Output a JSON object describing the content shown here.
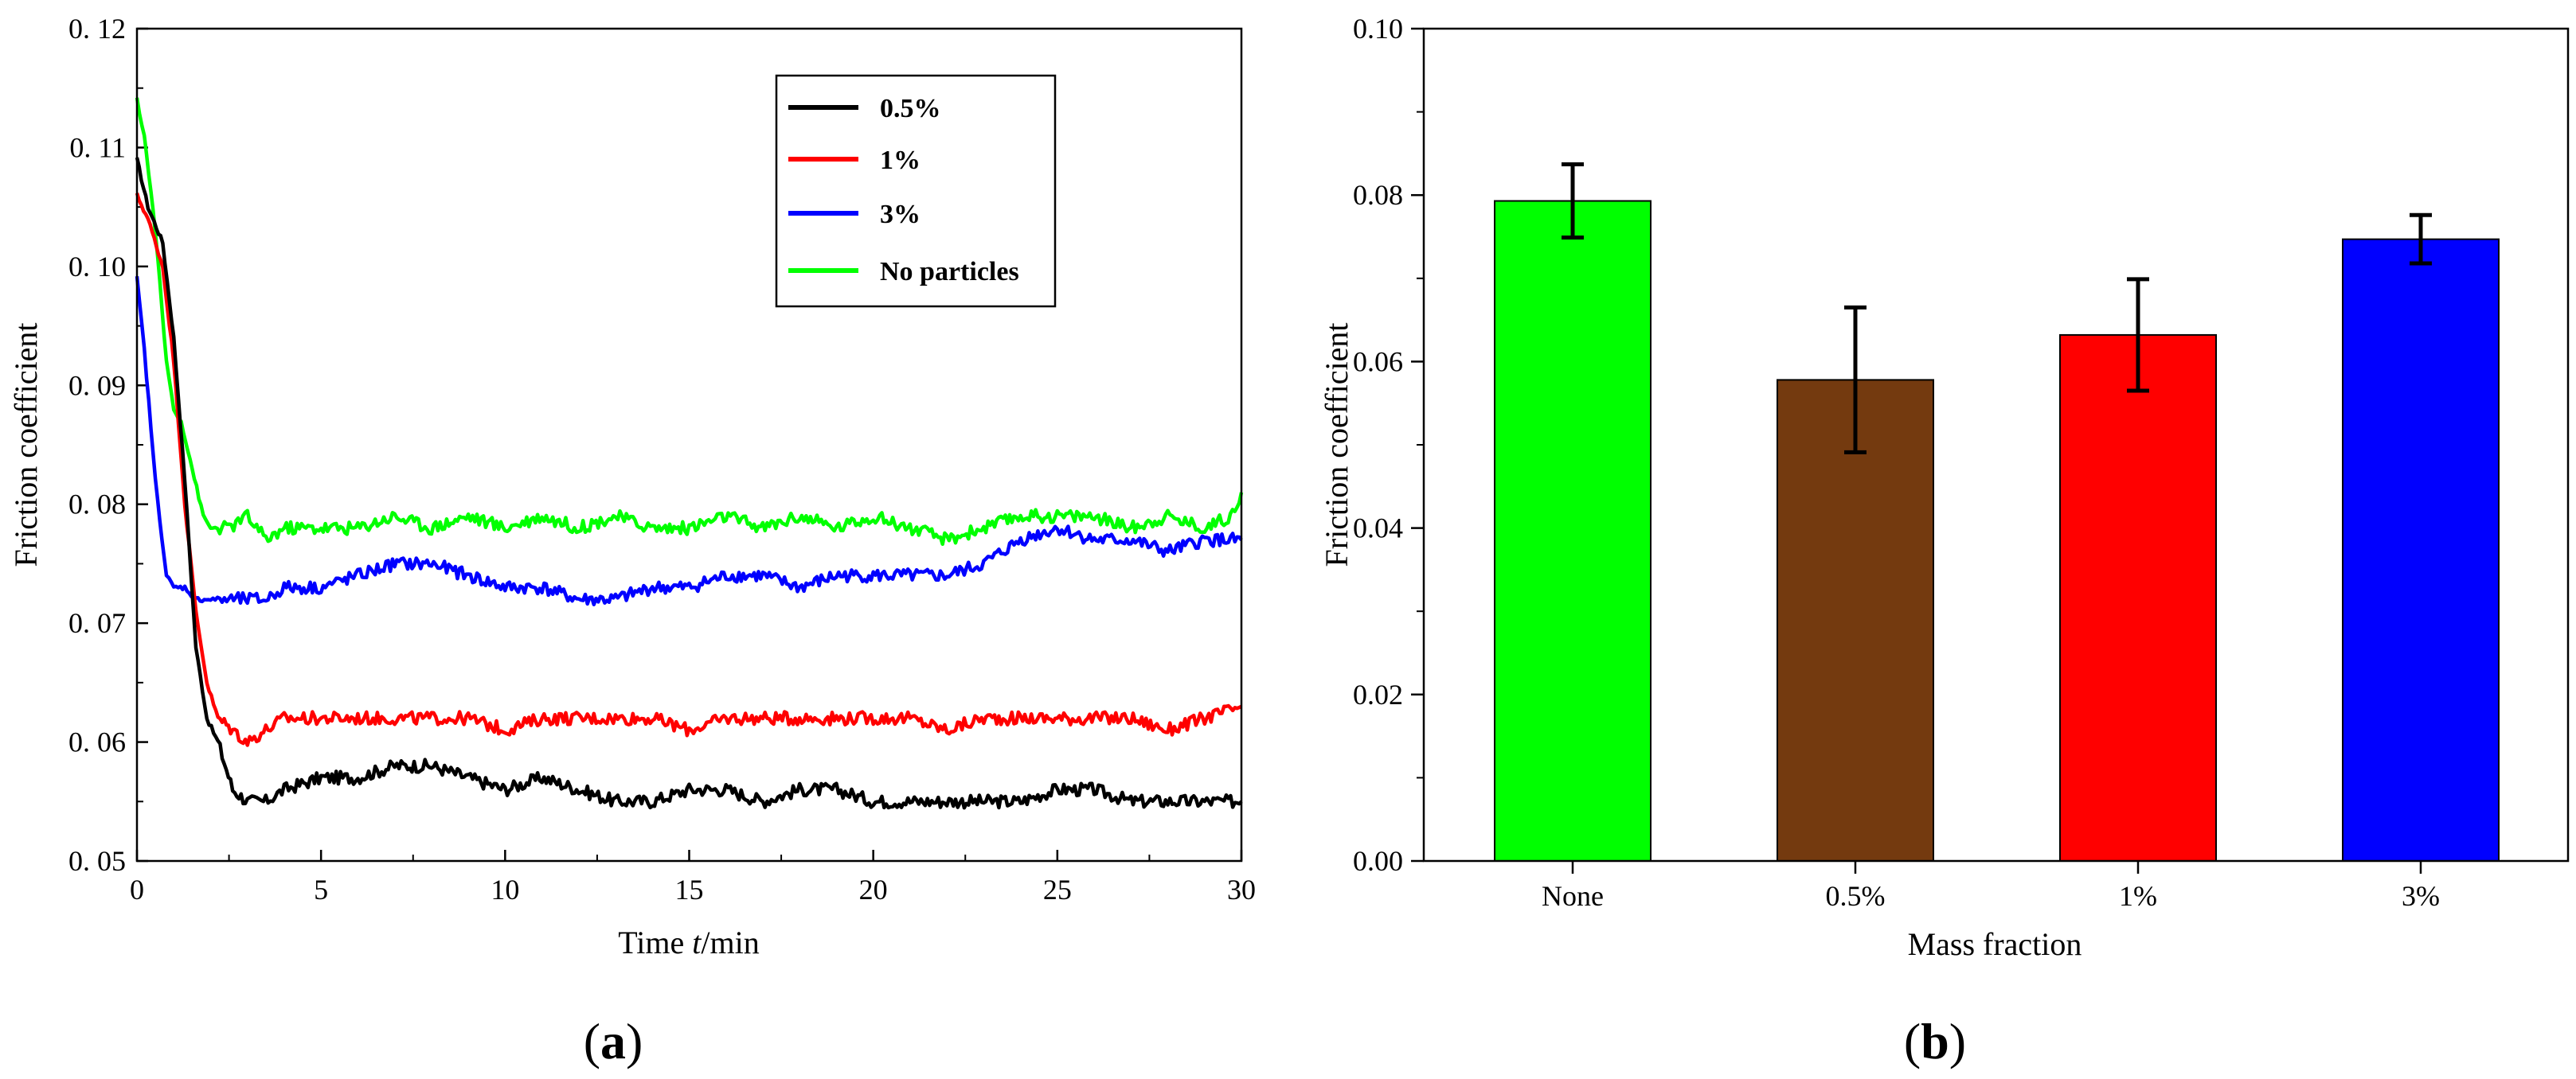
{
  "panels": {
    "a_label_prefix": "(",
    "a_label_letter": "a",
    "a_label_suffix": ")",
    "b_label_prefix": "(",
    "b_label_letter": "b",
    "b_label_suffix": ")"
  },
  "chart_data": [
    {
      "type": "line",
      "panel": "a",
      "title": "",
      "xlabel_prefix": "Time ",
      "xlabel_italic": "t",
      "xlabel_suffix": "/min",
      "ylabel": "Friction coefficient",
      "xlim": [
        0,
        30
      ],
      "ylim": [
        0.05,
        0.12
      ],
      "xticks": [
        0,
        5,
        10,
        15,
        20,
        25,
        30
      ],
      "xtick_labels": [
        "0",
        "5",
        "10",
        "15",
        "20",
        "25",
        "30"
      ],
      "yticks": [
        0.05,
        0.06,
        0.07,
        0.08,
        0.09,
        0.1,
        0.11,
        0.12
      ],
      "ytick_labels": [
        "0. 05",
        "0. 06",
        "0. 07",
        "0. 08",
        "0. 09",
        "0. 10",
        "0. 11",
        "0. 12"
      ],
      "legend_position": "top-right",
      "series": [
        {
          "name": "0.5%",
          "color": "#000000",
          "x": [
            0,
            0.3,
            0.7,
            1.0,
            1.3,
            1.6,
            1.9,
            2.2,
            2.6,
            3.0,
            3.5,
            4.0,
            5.0,
            6.0,
            7.0,
            8.0,
            9.0,
            10.0,
            11.0,
            12.0,
            13.0,
            14.0,
            15.0,
            16.0,
            17.0,
            18.0,
            19.0,
            20.0,
            21.0,
            22.0,
            23.0,
            24.0,
            25.0,
            26.0,
            27.0,
            28.0,
            29.0,
            30.0
          ],
          "values": [
            0.109,
            0.105,
            0.102,
            0.094,
            0.082,
            0.068,
            0.062,
            0.06,
            0.056,
            0.055,
            0.055,
            0.056,
            0.057,
            0.057,
            0.058,
            0.058,
            0.057,
            0.056,
            0.057,
            0.056,
            0.055,
            0.055,
            0.056,
            0.056,
            0.055,
            0.056,
            0.056,
            0.055,
            0.055,
            0.055,
            0.055,
            0.055,
            0.056,
            0.056,
            0.055,
            0.055,
            0.055,
            0.055
          ]
        },
        {
          "name": "1%",
          "color": "#ff0000",
          "x": [
            0,
            0.3,
            0.7,
            1.0,
            1.3,
            1.6,
            1.9,
            2.2,
            2.6,
            3.0,
            3.5,
            4.0,
            5.0,
            6.0,
            7.0,
            8.0,
            9.0,
            10.0,
            11.0,
            12.0,
            13.0,
            14.0,
            15.0,
            16.0,
            17.0,
            18.0,
            19.0,
            20.0,
            21.0,
            22.0,
            23.0,
            24.0,
            25.0,
            26.0,
            27.0,
            28.0,
            29.0,
            30.0
          ],
          "values": [
            0.106,
            0.104,
            0.1,
            0.092,
            0.08,
            0.071,
            0.065,
            0.062,
            0.061,
            0.06,
            0.061,
            0.062,
            0.062,
            0.062,
            0.062,
            0.062,
            0.062,
            0.061,
            0.062,
            0.062,
            0.062,
            0.062,
            0.061,
            0.062,
            0.062,
            0.062,
            0.062,
            0.062,
            0.062,
            0.061,
            0.062,
            0.062,
            0.062,
            0.062,
            0.062,
            0.061,
            0.062,
            0.063
          ]
        },
        {
          "name": "3%",
          "color": "#0000ff",
          "x": [
            0,
            0.2,
            0.5,
            0.8,
            1.0,
            1.3,
            1.6,
            2.0,
            2.5,
            3.0,
            3.5,
            4.0,
            5.0,
            6.0,
            7.0,
            8.0,
            9.0,
            10.0,
            11.0,
            12.0,
            13.0,
            14.0,
            15.0,
            16.0,
            17.0,
            18.0,
            19.0,
            20.0,
            21.0,
            22.0,
            23.0,
            24.0,
            25.0,
            26.0,
            27.0,
            28.0,
            29.0,
            30.0
          ],
          "values": [
            0.099,
            0.093,
            0.082,
            0.074,
            0.073,
            0.073,
            0.072,
            0.072,
            0.072,
            0.072,
            0.072,
            0.073,
            0.073,
            0.074,
            0.075,
            0.075,
            0.074,
            0.073,
            0.073,
            0.072,
            0.072,
            0.073,
            0.073,
            0.074,
            0.074,
            0.073,
            0.074,
            0.074,
            0.074,
            0.074,
            0.075,
            0.077,
            0.078,
            0.077,
            0.077,
            0.076,
            0.077,
            0.077
          ]
        },
        {
          "name": "No particles",
          "color": "#00ff00",
          "x": [
            0,
            0.2,
            0.5,
            0.8,
            1.0,
            1.2,
            1.5,
            1.8,
            2.0,
            2.5,
            3.0,
            3.5,
            4.0,
            5.0,
            6.0,
            7.0,
            8.0,
            9.0,
            10.0,
            11.0,
            12.0,
            13.0,
            14.0,
            15.0,
            16.0,
            17.0,
            18.0,
            19.0,
            20.0,
            21.0,
            22.0,
            23.0,
            24.0,
            25.0,
            26.0,
            27.0,
            28.0,
            29.0,
            29.7,
            30.0
          ],
          "values": [
            0.114,
            0.111,
            0.103,
            0.092,
            0.088,
            0.087,
            0.083,
            0.079,
            0.078,
            0.078,
            0.079,
            0.077,
            0.078,
            0.078,
            0.078,
            0.079,
            0.078,
            0.079,
            0.078,
            0.079,
            0.078,
            0.079,
            0.078,
            0.078,
            0.079,
            0.078,
            0.079,
            0.078,
            0.079,
            0.078,
            0.077,
            0.078,
            0.079,
            0.079,
            0.079,
            0.078,
            0.079,
            0.078,
            0.079,
            0.081
          ]
        }
      ]
    },
    {
      "type": "bar",
      "panel": "b",
      "title": "",
      "xlabel": "Mass fraction",
      "ylabel": "Friction coefficient",
      "ylim": [
        0,
        0.1
      ],
      "yticks": [
        0,
        0.02,
        0.04,
        0.06,
        0.08,
        0.1
      ],
      "ytick_labels": [
        "0.00",
        "0.02",
        "0.04",
        "0.06",
        "0.08",
        "0.10"
      ],
      "categories": [
        "None",
        "0.5%",
        "1%",
        "3%"
      ],
      "values": [
        0.0793,
        0.0578,
        0.0632,
        0.0747
      ],
      "errors": [
        0.0044,
        0.0087,
        0.0067,
        0.0029
      ],
      "colors": [
        "#00ff00",
        "#743a0f",
        "#ff0000",
        "#0000ff"
      ]
    }
  ]
}
